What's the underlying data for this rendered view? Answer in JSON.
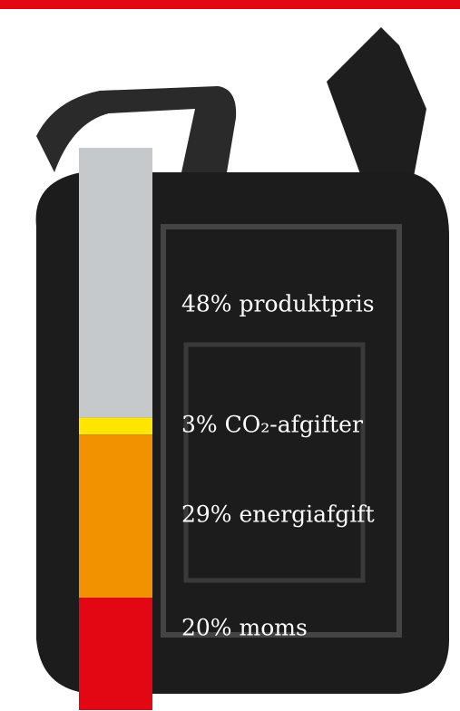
{
  "chart_data": {
    "type": "stacked_bar",
    "values": [
      48,
      3,
      29,
      20
    ],
    "value_labels": [
      "48% produktpris",
      "3% CO₂-afgifter",
      "29% energiafgift",
      "20% moms"
    ],
    "colors": [
      "#c5c9cb",
      "#ffe600",
      "#f39200",
      "#e30613"
    ],
    "ylim": [
      0,
      100
    ]
  }
}
